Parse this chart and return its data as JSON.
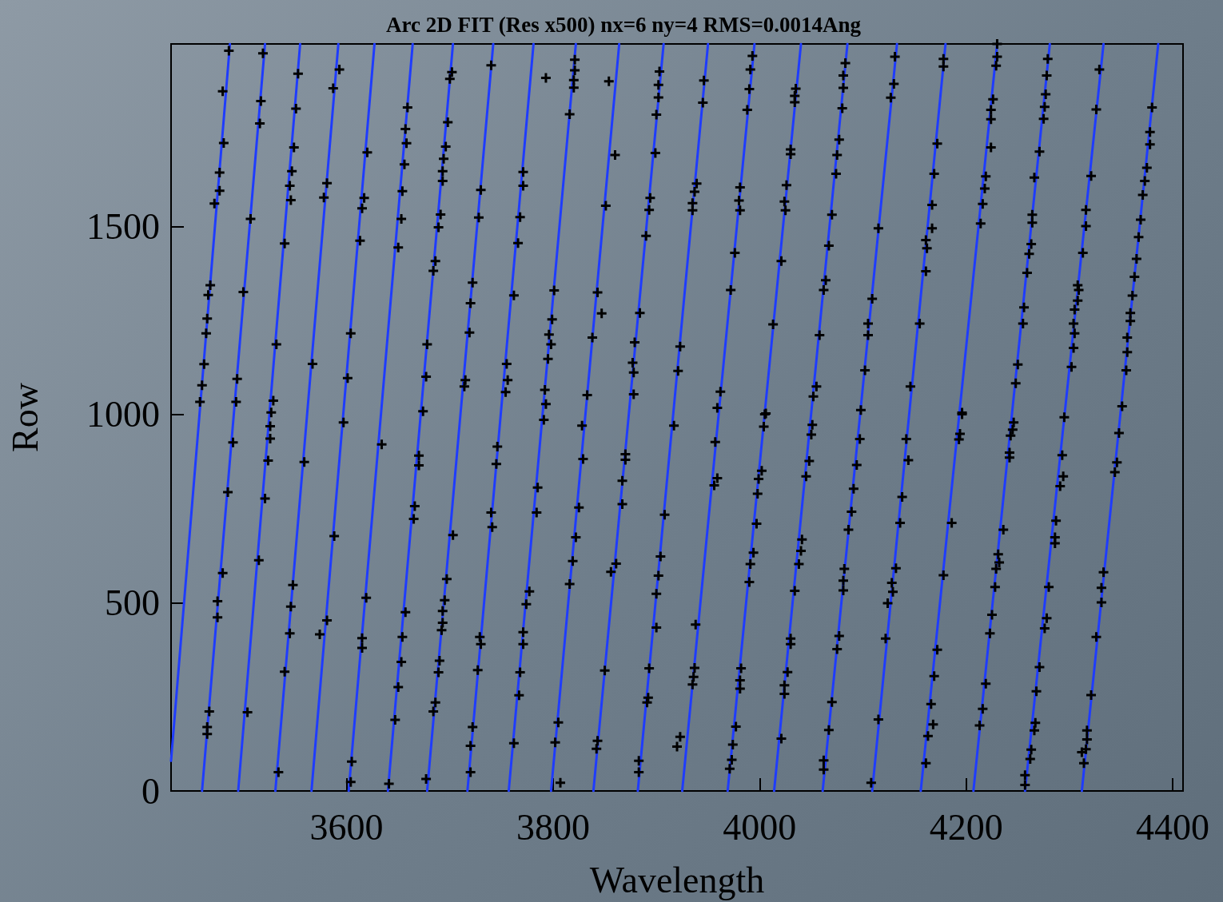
{
  "chart_data": {
    "type": "scatter",
    "title": "Arc 2D FIT (Res x500) nx=6 ny=4 RMS=0.0014Ang",
    "xlabel": "Wavelength",
    "ylabel": "Row",
    "xlim": [
      3430,
      4410
    ],
    "ylim": [
      0,
      1985
    ],
    "xticks": [
      3600,
      3800,
      4000,
      4200,
      4400
    ],
    "yticks": [
      0,
      500,
      1000,
      1500
    ],
    "grid": false,
    "series": [
      {
        "type": "line",
        "color": "#1f3cff",
        "marker": "none",
        "x": [
          3430,
          3487
        ],
        "values": [
          80,
          1985
        ]
      },
      {
        "type": "line",
        "color": "#1f3cff",
        "marker": "none",
        "x": [
          3460,
          3521
        ],
        "values": [
          0,
          1985
        ]
      },
      {
        "type": "line",
        "color": "#1f3cff",
        "marker": "none",
        "x": [
          3495,
          3555
        ],
        "values": [
          0,
          1985
        ]
      },
      {
        "type": "line",
        "color": "#1f3cff",
        "marker": "none",
        "x": [
          3531,
          3592
        ],
        "values": [
          0,
          1985
        ]
      },
      {
        "type": "line",
        "color": "#1f3cff",
        "marker": "none",
        "x": [
          3566,
          3627
        ],
        "values": [
          0,
          1985
        ]
      },
      {
        "type": "line",
        "color": "#1f3cff",
        "marker": "none",
        "x": [
          3602,
          3664
        ],
        "values": [
          0,
          1985
        ]
      },
      {
        "type": "line",
        "color": "#1f3cff",
        "marker": "none",
        "x": [
          3640,
          3703
        ],
        "values": [
          0,
          1985
        ]
      },
      {
        "type": "line",
        "color": "#1f3cff",
        "marker": "none",
        "x": [
          3678,
          3742
        ],
        "values": [
          0,
          1985
        ]
      },
      {
        "type": "line",
        "color": "#1f3cff",
        "marker": "none",
        "x": [
          3717,
          3781
        ],
        "values": [
          0,
          1985
        ]
      },
      {
        "type": "line",
        "color": "#1f3cff",
        "marker": "none",
        "x": [
          3757,
          3822
        ],
        "values": [
          0,
          1985
        ]
      },
      {
        "type": "line",
        "color": "#1f3cff",
        "marker": "none",
        "x": [
          3798,
          3864
        ],
        "values": [
          0,
          1985
        ]
      },
      {
        "type": "line",
        "color": "#1f3cff",
        "marker": "none",
        "x": [
          3839,
          3907
        ],
        "values": [
          0,
          1985
        ]
      },
      {
        "type": "line",
        "color": "#1f3cff",
        "marker": "none",
        "x": [
          3882,
          3950
        ],
        "values": [
          0,
          1985
        ]
      },
      {
        "type": "line",
        "color": "#1f3cff",
        "marker": "none",
        "x": [
          3925,
          3995
        ],
        "values": [
          0,
          1985
        ]
      },
      {
        "type": "line",
        "color": "#1f3cff",
        "marker": "none",
        "x": [
          3969,
          4040
        ],
        "values": [
          0,
          1985
        ]
      },
      {
        "type": "line",
        "color": "#1f3cff",
        "marker": "none",
        "x": [
          4014,
          4085
        ],
        "values": [
          0,
          1985
        ]
      },
      {
        "type": "line",
        "color": "#1f3cff",
        "marker": "none",
        "x": [
          4061,
          4133
        ],
        "values": [
          0,
          1985
        ]
      },
      {
        "type": "line",
        "color": "#1f3cff",
        "marker": "none",
        "x": [
          4109,
          4180
        ],
        "values": [
          0,
          1985
        ]
      },
      {
        "type": "line",
        "color": "#1f3cff",
        "marker": "none",
        "x": [
          4156,
          4230
        ],
        "values": [
          0,
          1985
        ]
      },
      {
        "type": "line",
        "color": "#1f3cff",
        "marker": "none",
        "x": [
          4207,
          4281
        ],
        "values": [
          0,
          1985
        ]
      },
      {
        "type": "line",
        "color": "#1f3cff",
        "marker": "none",
        "x": [
          4257,
          4333
        ],
        "values": [
          0,
          1985
        ]
      },
      {
        "type": "line",
        "color": "#1f3cff",
        "marker": "none",
        "x": [
          4312,
          4386
        ],
        "values": [
          0,
          1985
        ]
      },
      {
        "color": "#000000",
        "marker": "cross",
        "x": [
          3486,
          3480,
          3481,
          3477,
          3477,
          3472,
          3519,
          3517,
          3516,
          3507,
          3553,
          3551,
          3549,
          3547,
          3545,
          3546,
          3540,
          3593,
          3587,
          3581,
          3578,
          3620,
          3617,
          3615,
          3613,
          3659,
          3657,
          3658,
          3656,
          3654,
          3653,
          3650,
          3702,
          3700,
          3698,
          3696,
          3694,
          3693,
          3693,
          3691,
          3689,
          3686,
          3684,
          3740,
          3730,
          3728,
          3722,
          3720,
          3719,
          3771,
          3771,
          3768,
          3766,
          3762,
          3793,
          3821,
          3821,
          3820,
          3820,
          3816,
          3801,
          3799,
          3796,
          3798,
          3795,
          3792,
          3854,
          3860,
          3851,
          3843,
          3847,
          3838,
          3833,
          3903,
          3902,
          3902,
          3900,
          3899,
          3894,
          3893,
          3890,
          3884,
          3879,
          3877,
          3878,
          3878,
          3468,
          3466,
          3465,
          3464,
          3462,
          3460,
          3458,
          3500,
          3494,
          3493,
          3532,
          3529,
          3527,
          3567,
          3604,
          3601,
          3677,
          3678,
          3674,
          3715,
          3714,
          3755,
          3756,
          3754,
          3793,
          3946,
          3945,
          3939,
          3937,
          3935,
          3935,
          3923,
          3921,
          3993,
          3991,
          3990,
          3988,
          3981,
          3980,
          3981,
          3976,
          3972,
          3962,
          3959,
          4035,
          4034,
          4034,
          4030,
          4030,
          4026,
          4024,
          4025,
          4021,
          4013,
          4006,
          4083,
          4081,
          4081,
          4080,
          4077,
          4075,
          4074,
          4070,
          4067,
          4064,
          4062,
          4058,
          4055,
          4052,
          4131,
          4130,
          4127,
          4115,
          4109,
          4105,
          4105,
          4102,
          4098,
          4178,
          4178,
          4172,
          4169,
          4167,
          4167,
          4161,
          4162,
          4161,
          4155,
          4146,
          4196,
          4230,
          4230,
          4229,
          4226,
          4224,
          4224,
          4224,
          4219,
          4218,
          4216,
          4214,
          4279,
          4278,
          4277,
          4276,
          4275,
          4271,
          4266,
          4264,
          4264,
          4263,
          4261,
          4259,
          4256,
          4255,
          4250,
          4248,
          4329,
          4326,
          4321,
          4316,
          4316,
          4313,
          4308,
          4309,
          4308,
          4305,
          4304,
          4305,
          4304,
          4302,
          4380,
          4378,
          4378,
          4375,
          4373,
          4371,
          4369,
          4367,
          4365,
          4363,
          4361,
          4359,
          4359,
          4356,
          4356,
          4355,
          4351,
          3490,
          3485,
          3480,
          3475,
          3475,
          3467,
          3465,
          3465,
          3526,
          3526,
          3524,
          3521,
          3515,
          3504,
          3559,
          3548,
          3546,
          3545,
          3540,
          3534,
          3597,
          3588,
          3581,
          3574,
          3634,
          3619,
          3615,
          3615,
          3605,
          3604,
          3670,
          3670,
          3666,
          3665,
          3657,
          3654,
          3653,
          3650,
          3647,
          3641,
          3703,
          3697,
          3695,
          3693,
          3693,
          3692,
          3690,
          3689,
          3686,
          3684,
          3677,
          3746,
          3745,
          3740,
          3741,
          3729,
          3730,
          3727,
          3722,
          3720,
          3720,
          3791,
          3785,
          3784,
          3777,
          3774,
          3771,
          3771,
          3768,
          3767,
          3762,
          3828,
          3829,
          3825,
          3822,
          3819,
          3816,
          3805,
          3802,
          3807,
          3870,
          3870,
          3867,
          3867,
          3861,
          3856,
          3850,
          3843,
          3842,
          3908,
          3904,
          3902,
          3900,
          3900,
          3893,
          3892,
          3891,
          3883,
          3883,
          3917,
          3957,
          3959,
          3956,
          3938,
          3937,
          3936,
          3935,
          3923,
          3920,
          4005,
          4004,
          4002,
          3999,
          3998,
          3997,
          3994,
          3991,
          3990,
          3982,
          3981,
          3981,
          3977,
          3974,
          3973,
          3971,
          4051,
          4050,
          4048,
          4045,
          4041,
          4040,
          4038,
          4034,
          4030,
          4030,
          4027,
          4024,
          4024,
          4021,
          4097,
          4094,
          4091,
          4089,
          4086,
          4082,
          4081,
          4081,
          4077,
          4075,
          4070,
          4067,
          4062,
          4062,
          4108,
          4142,
          4144,
          4138,
          4136,
          4132,
          4128,
          4129,
          4124,
          4122,
          4115,
          4196,
          4194,
          4193,
          4186,
          4178,
          4172,
          4169,
          4166,
          4168,
          4163,
          4161,
          4246,
          4245,
          4243,
          4242,
          4242,
          4236,
          4231,
          4232,
          4229,
          4228,
          4225,
          4223,
          4219,
          4216,
          4213,
          4295,
          4293,
          4294,
          4291,
          4287,
          4286,
          4286,
          4280,
          4278,
          4276,
          4271,
          4268,
          4267,
          4266,
          4263,
          4262,
          4257,
          4257,
          4348,
          4346,
          4344,
          4333,
          4331,
          4331,
          4326,
          4321,
          4317,
          4317,
          4316,
          4312,
          4314
        ],
        "values": [
          1967,
          1859,
          1722,
          1643,
          1595,
          1561,
          1960,
          1833,
          1774,
          1520,
          1906,
          1813,
          1710,
          1647,
          1608,
          1570,
          1455,
          1917,
          1867,
          1615,
          1577,
          1697,
          1576,
          1548,
          1462,
          1816,
          1759,
          1721,
          1665,
          1594,
          1520,
          1444,
          1910,
          1892,
          1777,
          1712,
          1680,
          1647,
          1621,
          1532,
          1498,
          1408,
          1382,
          1928,
          1597,
          1524,
          1351,
          1296,
          1218,
          1645,
          1608,
          1525,
          1456,
          1317,
          1895,
          1943,
          1915,
          1889,
          1869,
          1798,
          1330,
          1253,
          1213,
          1187,
          1148,
          1066,
          1886,
          1690,
          1555,
          1325,
          1269,
          1205,
          1052,
          1912,
          1876,
          1843,
          1797,
          1695,
          1576,
          1544,
          1475,
          1270,
          1192,
          1138,
          1112,
          1054,
          1344,
          1318,
          1255,
          1216,
          1134,
          1078,
          1034,
          1326,
          1095,
          1034,
          1187,
          1037,
          1006,
          1135,
          1216,
          1097,
          1101,
          1187,
          1009,
          1092,
          1075,
          1135,
          1092,
          1060,
          1028,
          1888,
          1829,
          1614,
          1592,
          1562,
          1543,
          1181,
          1116,
          1953,
          1917,
          1865,
          1810,
          1604,
          1569,
          1543,
          1430,
          1331,
          1061,
          1018,
          1866,
          1847,
          1830,
          1705,
          1692,
          1610,
          1566,
          1543,
          1408,
          1240,
          1003,
          1934,
          1901,
          1868,
          1814,
          1731,
          1690,
          1640,
          1531,
          1449,
          1357,
          1331,
          1211,
          1075,
          1048,
          1951,
          1879,
          1842,
          1495,
          1308,
          1242,
          1211,
          1118,
          1012,
          1945,
          1925,
          1720,
          1640,
          1557,
          1495,
          1464,
          1442,
          1381,
          1242,
          1075,
          1005,
          1985,
          1951,
          1927,
          1838,
          1810,
          1785,
          1710,
          1633,
          1601,
          1560,
          1508,
          1945,
          1901,
          1851,
          1818,
          1786,
          1699,
          1630,
          1531,
          1510,
          1453,
          1427,
          1377,
          1285,
          1242,
          1133,
          1083,
          1917,
          1811,
          1634,
          1544,
          1501,
          1430,
          1344,
          1331,
          1303,
          1279,
          1242,
          1216,
          1177,
          1127,
          1816,
          1751,
          1718,
          1656,
          1621,
          1584,
          1518,
          1472,
          1414,
          1366,
          1316,
          1270,
          1249,
          1205,
          1166,
          1118,
          1022,
          926,
          794,
          579,
          504,
          461,
          211,
          170,
          151,
          969,
          936,
          878,
          777,
          613,
          209,
          874,
          547,
          490,
          419,
          317,
          50,
          979,
          677,
          453,
          416,
          921,
          513,
          406,
          380,
          78,
          24,
          891,
          865,
          757,
          723,
          475,
          409,
          343,
          276,
          189,
          19,
          680,
          563,
          507,
          478,
          447,
          427,
          346,
          315,
          235,
          211,
          32,
          915,
          869,
          740,
          701,
          409,
          390,
          321,
          170,
          120,
          50,
          986,
          806,
          740,
          530,
          496,
          422,
          390,
          315,
          254,
          127,
          971,
          882,
          753,
          674,
          611,
          550,
          182,
          129,
          22,
          895,
          880,
          824,
          762,
          604,
          582,
          320,
          133,
          112,
          734,
          623,
          572,
          524,
          434,
          326,
          248,
          235,
          80,
          50,
          971,
          927,
          831,
          812,
          442,
          327,
          303,
          283,
          144,
          118,
          1001,
          968,
          851,
          829,
          790,
          710,
          633,
          603,
          555,
          326,
          294,
          272,
          171,
          123,
          83,
          59,
          973,
          947,
          877,
          836,
          668,
          638,
          603,
          532,
          405,
          390,
          316,
          281,
          258,
          139,
          935,
          866,
          803,
          742,
          694,
          590,
          559,
          533,
          412,
          377,
          236,
          162,
          81,
          57,
          22,
          935,
          879,
          781,
          712,
          592,
          553,
          529,
          499,
          405,
          190,
          1001,
          949,
          934,
          712,
          573,
          375,
          305,
          231,
          177,
          146,
          74,
          979,
          960,
          944,
          899,
          886,
          694,
          629,
          607,
          590,
          542,
          468,
          419,
          285,
          218,
          174,
          993,
          892,
          836,
          810,
          718,
          674,
          658,
          542,
          459,
          432,
          329,
          265,
          181,
          161,
          110,
          85,
          42,
          16,
          951,
          873,
          847,
          581,
          540,
          501,
          409,
          255,
          161,
          137,
          111,
          103,
          74
        ]
      }
    ]
  }
}
